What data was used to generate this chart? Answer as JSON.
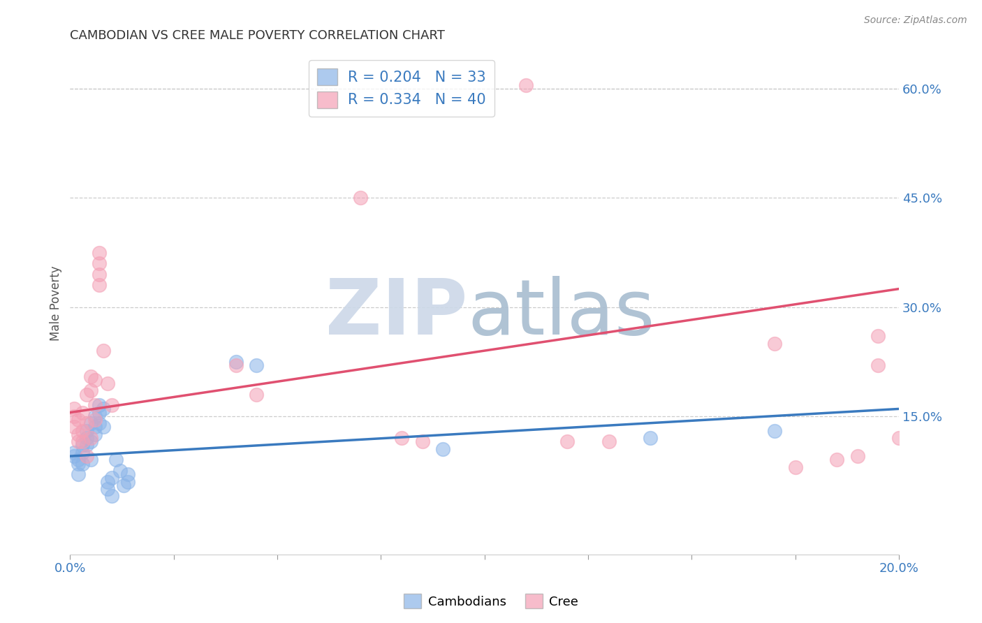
{
  "title": "CAMBODIAN VS CREE MALE POVERTY CORRELATION CHART",
  "source": "Source: ZipAtlas.com",
  "ylabel": "Male Poverty",
  "right_ytick_labels": [
    "60.0%",
    "45.0%",
    "30.0%",
    "15.0%"
  ],
  "right_ytick_positions": [
    0.6,
    0.45,
    0.3,
    0.15
  ],
  "xlim": [
    0.0,
    0.2
  ],
  "ylim": [
    -0.04,
    0.65
  ],
  "legend_labels": [
    "Cambodians",
    "Cree"
  ],
  "cambodian_color": "#8ab4e8",
  "cree_color": "#f4a0b5",
  "cambodian_line_color": "#3a7abf",
  "cree_line_color": "#e05070",
  "grid_color": "#cccccc",
  "background_color": "#ffffff",
  "cambodian_points": [
    [
      0.001,
      0.1
    ],
    [
      0.001,
      0.095
    ],
    [
      0.002,
      0.085
    ],
    [
      0.002,
      0.09
    ],
    [
      0.002,
      0.07
    ],
    [
      0.003,
      0.11
    ],
    [
      0.003,
      0.1
    ],
    [
      0.003,
      0.085
    ],
    [
      0.004,
      0.13
    ],
    [
      0.004,
      0.12
    ],
    [
      0.004,
      0.11
    ],
    [
      0.005,
      0.09
    ],
    [
      0.005,
      0.14
    ],
    [
      0.005,
      0.115
    ],
    [
      0.006,
      0.135
    ],
    [
      0.006,
      0.15
    ],
    [
      0.006,
      0.125
    ],
    [
      0.007,
      0.155
    ],
    [
      0.007,
      0.165
    ],
    [
      0.007,
      0.14
    ],
    [
      0.008,
      0.16
    ],
    [
      0.008,
      0.135
    ],
    [
      0.009,
      0.06
    ],
    [
      0.009,
      0.05
    ],
    [
      0.01,
      0.04
    ],
    [
      0.01,
      0.065
    ],
    [
      0.011,
      0.09
    ],
    [
      0.012,
      0.075
    ],
    [
      0.013,
      0.055
    ],
    [
      0.014,
      0.07
    ],
    [
      0.014,
      0.06
    ],
    [
      0.04,
      0.225
    ],
    [
      0.045,
      0.22
    ],
    [
      0.09,
      0.105
    ],
    [
      0.14,
      0.12
    ],
    [
      0.17,
      0.13
    ]
  ],
  "cree_points": [
    [
      0.001,
      0.135
    ],
    [
      0.001,
      0.15
    ],
    [
      0.001,
      0.16
    ],
    [
      0.002,
      0.125
    ],
    [
      0.002,
      0.115
    ],
    [
      0.002,
      0.145
    ],
    [
      0.003,
      0.115
    ],
    [
      0.003,
      0.13
    ],
    [
      0.003,
      0.155
    ],
    [
      0.004,
      0.095
    ],
    [
      0.004,
      0.14
    ],
    [
      0.004,
      0.18
    ],
    [
      0.005,
      0.12
    ],
    [
      0.005,
      0.185
    ],
    [
      0.005,
      0.205
    ],
    [
      0.006,
      0.2
    ],
    [
      0.006,
      0.165
    ],
    [
      0.006,
      0.145
    ],
    [
      0.007,
      0.33
    ],
    [
      0.007,
      0.345
    ],
    [
      0.007,
      0.36
    ],
    [
      0.007,
      0.375
    ],
    [
      0.008,
      0.24
    ],
    [
      0.009,
      0.195
    ],
    [
      0.01,
      0.165
    ],
    [
      0.04,
      0.22
    ],
    [
      0.045,
      0.18
    ],
    [
      0.07,
      0.45
    ],
    [
      0.08,
      0.12
    ],
    [
      0.085,
      0.115
    ],
    [
      0.11,
      0.605
    ],
    [
      0.12,
      0.115
    ],
    [
      0.13,
      0.115
    ],
    [
      0.17,
      0.25
    ],
    [
      0.175,
      0.08
    ],
    [
      0.185,
      0.09
    ],
    [
      0.19,
      0.095
    ],
    [
      0.195,
      0.22
    ],
    [
      0.195,
      0.26
    ],
    [
      0.2,
      0.12
    ]
  ],
  "cambodian_line": {
    "x0": 0.0,
    "y0": 0.095,
    "x1": 0.2,
    "y1": 0.16
  },
  "cree_line": {
    "x0": 0.0,
    "y0": 0.155,
    "x1": 0.2,
    "y1": 0.325
  }
}
